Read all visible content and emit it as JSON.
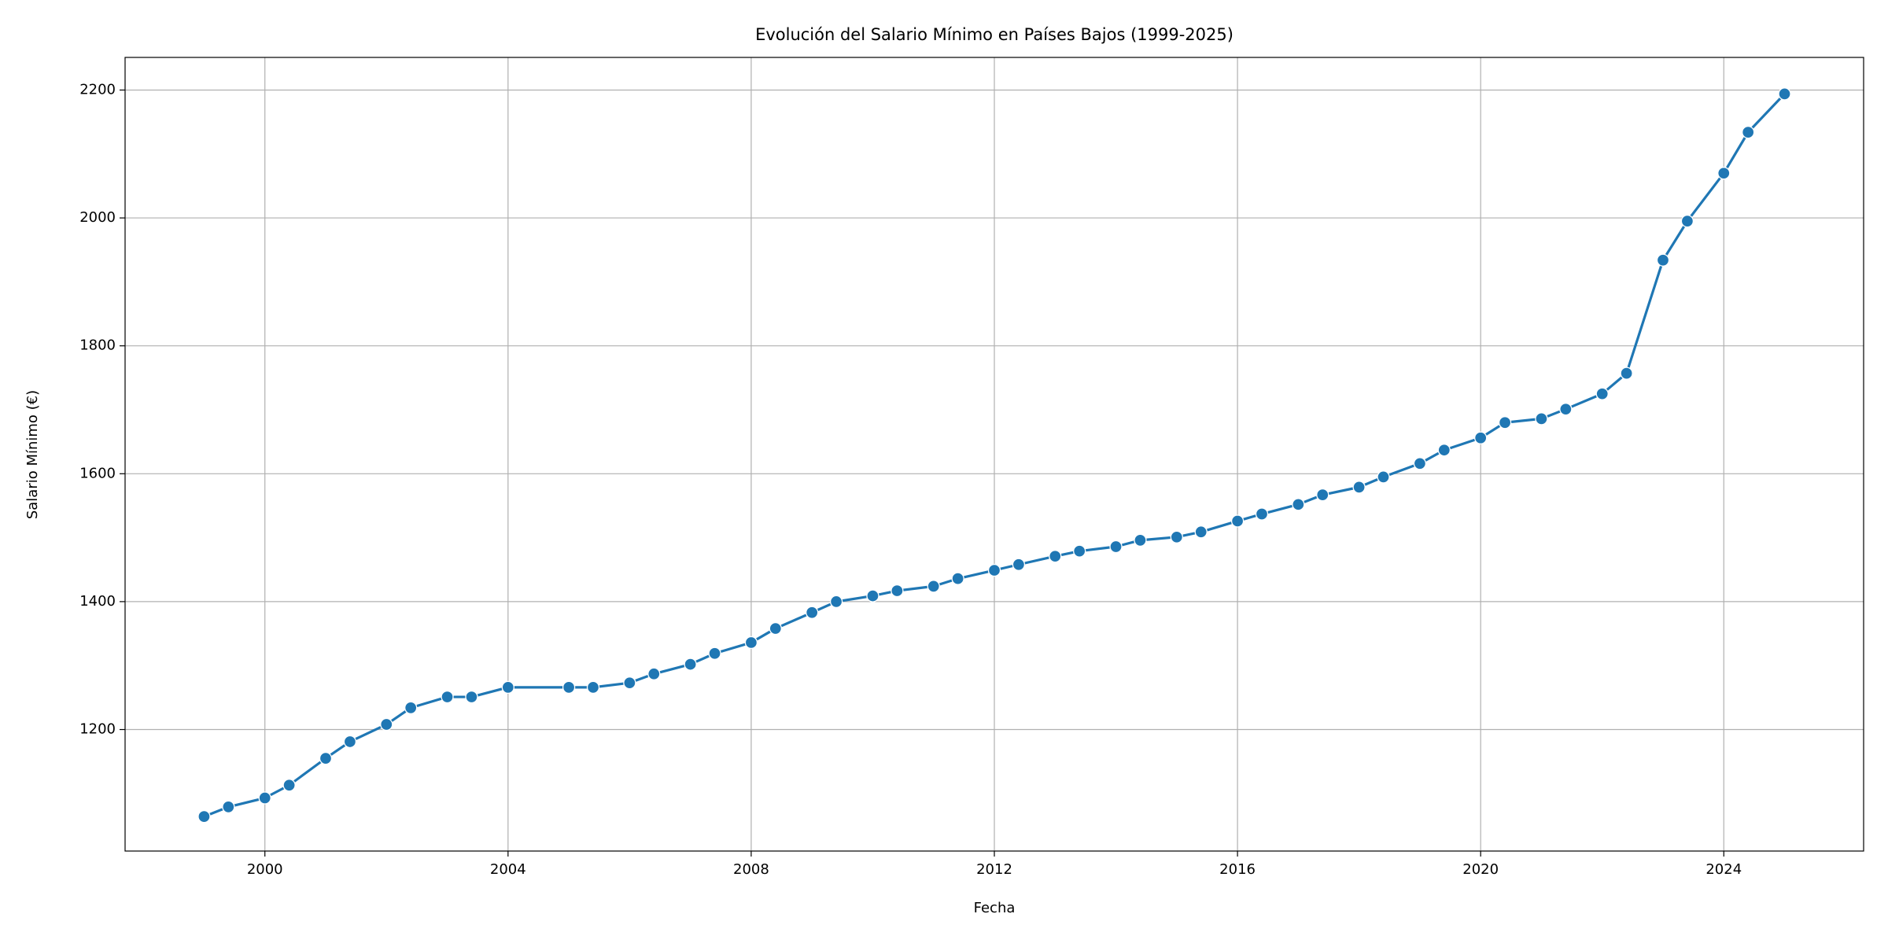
{
  "chart_data": {
    "type": "line",
    "title": "Evolución del Salario Mínimo en Países Bajos (1999-2025)",
    "x_label": "Fecha",
    "y_label": "Salario Mínimo (€)",
    "x": [
      1999,
      1999.4,
      2000,
      2000.4,
      2001,
      2001.4,
      2002,
      2002.4,
      2003,
      2003.4,
      2004,
      2005,
      2005.4,
      2006,
      2006.4,
      2007,
      2007.4,
      2008,
      2008.4,
      2009,
      2009.4,
      2010,
      2010.4,
      2011,
      2011.4,
      2012,
      2012.4,
      2013,
      2013.4,
      2014,
      2014.4,
      2015,
      2015.4,
      2016,
      2016.4,
      2017,
      2017.4,
      2018,
      2018.4,
      2019,
      2019.4,
      2020,
      2020.4,
      2021,
      2021.4,
      2022,
      2022.4,
      2023,
      2023.4,
      2024,
      2024.4,
      2025
    ],
    "series": [
      {
        "name": "Salario Mínimo",
        "color": "#1f77b4",
        "values": [
          1064,
          1079,
          1093,
          1113,
          1155,
          1181,
          1208,
          1234,
          1251,
          1251,
          1266,
          1266,
          1266,
          1273,
          1287,
          1302,
          1319,
          1336,
          1358,
          1383,
          1400,
          1409,
          1417,
          1424,
          1436,
          1449,
          1458,
          1471,
          1479,
          1486,
          1496,
          1501,
          1509,
          1526,
          1537,
          1552,
          1567,
          1579,
          1595,
          1616,
          1637,
          1656,
          1680,
          1686,
          1701,
          1725,
          1757,
          1934,
          1995,
          2070,
          2134,
          2194
        ]
      }
    ],
    "xlim": [
      1997.7,
      2026.3
    ],
    "xticks": [
      2000,
      2004,
      2008,
      2012,
      2016,
      2020,
      2024
    ],
    "ylim": [
      1010,
      2251
    ],
    "yticks": [
      1200,
      1400,
      1600,
      1800,
      2000,
      2200
    ],
    "grid": true,
    "markers": true
  }
}
